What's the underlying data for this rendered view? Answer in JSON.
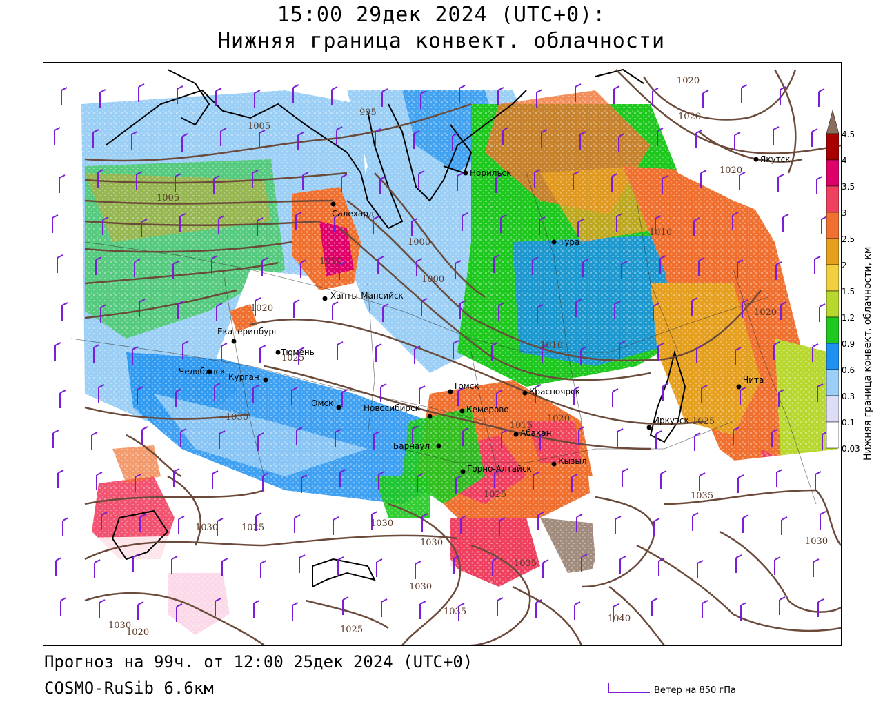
{
  "header": {
    "title_line1": "15:00 29дек 2024 (UTC+0):",
    "title_line2": "Нижняя граница конвект. облачности"
  },
  "footer": {
    "forecast": "Прогноз на 99ч. от 12:00 25дек 2024 (UTC+0)",
    "model": "COSMO-RuSib 6.6км",
    "wind_legend": "Ветер на 850 гПа"
  },
  "colorbar": {
    "title": "Нижняя граница конвект. облачности, км",
    "levels": [
      "4.5",
      "4",
      "3.5",
      "3",
      "2.5",
      "2",
      "1.5",
      "1.2",
      "0.9",
      "0.6",
      "0.3",
      "0.1",
      "0.03"
    ],
    "colors": [
      "#8b6f5e",
      "#a80000",
      "#e0006a",
      "#f04060",
      "#f07030",
      "#e6a020",
      "#f0d040",
      "#b8d830",
      "#1ec81e",
      "#1e90f0",
      "#9ccff5",
      "#ddddf5",
      "#ffffff"
    ]
  },
  "cities": [
    {
      "name": "Якутск"
    },
    {
      "name": "Норильск"
    },
    {
      "name": "Салехард"
    },
    {
      "name": "Тура"
    },
    {
      "name": "Ханты-Мансийск"
    },
    {
      "name": "Екатеринбург"
    },
    {
      "name": "Тюмень"
    },
    {
      "name": "Челябинск"
    },
    {
      "name": "Курган"
    },
    {
      "name": "Омск"
    },
    {
      "name": "Новосибирск"
    },
    {
      "name": "Томск"
    },
    {
      "name": "Кемерово"
    },
    {
      "name": "Красноярск"
    },
    {
      "name": "Барнаул"
    },
    {
      "name": "Абакан"
    },
    {
      "name": "Иркутск"
    },
    {
      "name": "Чита"
    },
    {
      "name": "Горно-Алтайск"
    },
    {
      "name": "Кызыл"
    }
  ],
  "isobar_labels": [
    "1020",
    "1020",
    "1020",
    "995",
    "1000",
    "1000",
    "1005",
    "1010",
    "1010",
    "1010",
    "1005",
    "1020",
    "1020",
    "1025",
    "1030",
    "1030",
    "1025",
    "1025",
    "1030",
    "1030",
    "1035",
    "1025",
    "1020",
    "1025",
    "1035",
    "1030",
    "1040",
    "1035",
    "1015",
    "1030",
    "1020",
    "1030"
  ],
  "colors": {
    "isobar": "#6b4a3a",
    "wind_barb": "#7a1fd6",
    "coast": "#000000"
  }
}
